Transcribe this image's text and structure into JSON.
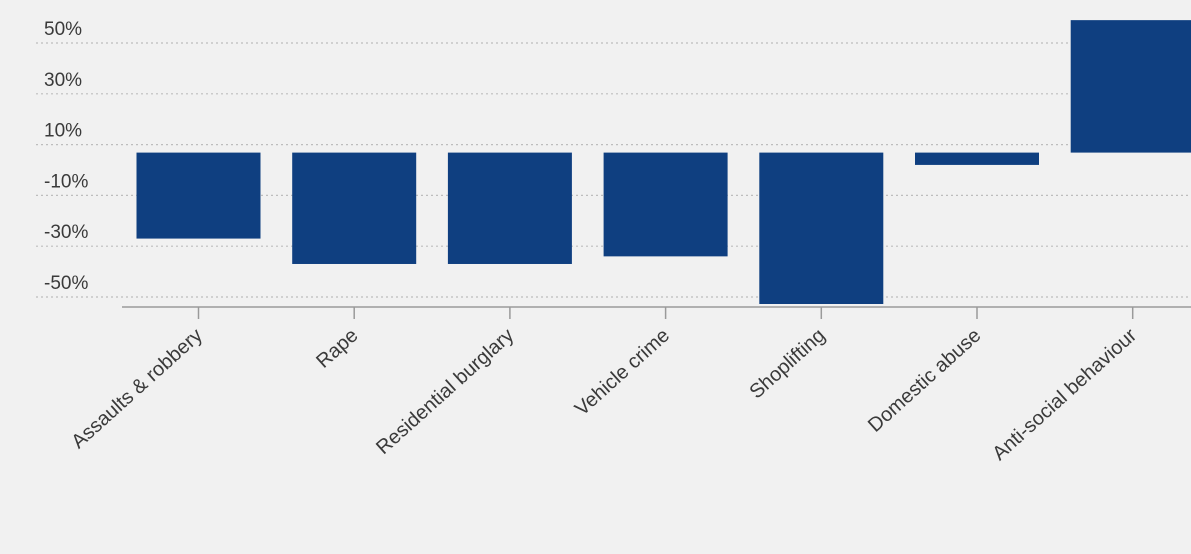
{
  "chart_data": {
    "type": "bar",
    "title": "",
    "xlabel": "",
    "ylabel": "",
    "categories": [
      "Assaults & robbery",
      "Rape",
      "Residential burglary",
      "Vehicle crime",
      "Shoplifting",
      "Domestic abuse",
      "Anti-social behaviour"
    ],
    "values": [
      -27,
      -37,
      -37,
      -34,
      -60,
      2,
      59
    ],
    "ylim": [
      -55,
      55
    ],
    "yticks": [
      50,
      30,
      10,
      -10,
      -30,
      -50
    ],
    "ytick_labels": [
      "50%",
      "30%",
      "10%",
      "-10%",
      "-30%",
      "-50%"
    ],
    "grid": true,
    "legend": "none",
    "colors": {
      "bar": "#0f3f80",
      "background": "#f1f1f1",
      "grid": "#bdbdbd",
      "text": "#3a3a3a"
    }
  }
}
